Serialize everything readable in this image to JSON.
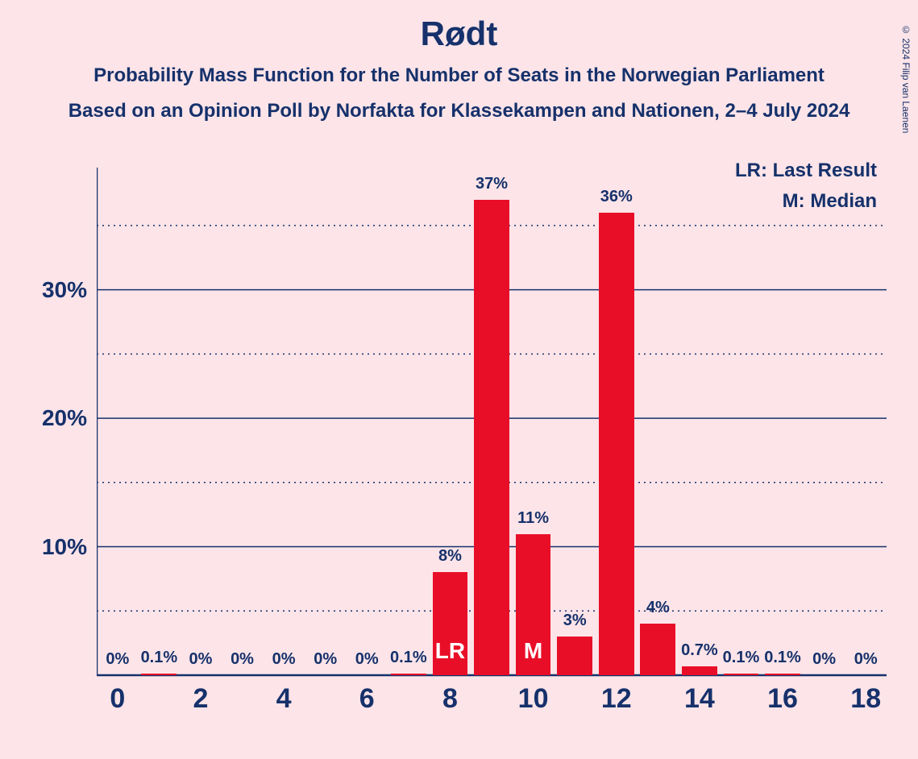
{
  "title": "Rødt",
  "subtitle1": "Probability Mass Function for the Number of Seats in the Norwegian Parliament",
  "subtitle2": "Based on an Opinion Poll by Norfakta for Klassekampen and Nationen, 2–4 July 2024",
  "copyright": "© 2024 Filip van Laenen",
  "legend": {
    "lr": "LR: Last Result",
    "m": "M: Median"
  },
  "chart": {
    "type": "bar",
    "background_color": "#fce4e8",
    "bar_color": "#e90e27",
    "axis_color": "#16316b",
    "text_color": "#16316b",
    "marker_text_color": "#ffffff",
    "title_fontsize": 42,
    "subtitle_fontsize": 24,
    "ylabel_fontsize": 28,
    "xlabel_fontsize": 34,
    "barlabel_fontsize": 20,
    "legend_fontsize": 24,
    "ylim": [
      0,
      37
    ],
    "y_major_ticks": [
      10,
      20,
      30
    ],
    "y_minor_ticks": [
      5,
      15,
      25,
      35
    ],
    "x_categories": [
      0,
      1,
      2,
      3,
      4,
      5,
      6,
      7,
      8,
      9,
      10,
      11,
      12,
      13,
      14,
      15,
      16,
      17,
      18
    ],
    "x_labels_shown": [
      0,
      2,
      4,
      6,
      8,
      10,
      12,
      14,
      16,
      18
    ],
    "bar_width": 0.85,
    "bars": [
      {
        "x": 0,
        "value": 0,
        "label": "0%"
      },
      {
        "x": 1,
        "value": 0.1,
        "label": "0.1%"
      },
      {
        "x": 2,
        "value": 0,
        "label": "0%"
      },
      {
        "x": 3,
        "value": 0,
        "label": "0%"
      },
      {
        "x": 4,
        "value": 0,
        "label": "0%"
      },
      {
        "x": 5,
        "value": 0,
        "label": "0%"
      },
      {
        "x": 6,
        "value": 0,
        "label": "0%"
      },
      {
        "x": 7,
        "value": 0.1,
        "label": "0.1%"
      },
      {
        "x": 8,
        "value": 8,
        "label": "8%",
        "marker": "LR"
      },
      {
        "x": 9,
        "value": 37,
        "label": "37%"
      },
      {
        "x": 10,
        "value": 11,
        "label": "11%",
        "marker": "M"
      },
      {
        "x": 11,
        "value": 3,
        "label": "3%"
      },
      {
        "x": 12,
        "value": 36,
        "label": "36%"
      },
      {
        "x": 13,
        "value": 4,
        "label": "4%"
      },
      {
        "x": 14,
        "value": 0.7,
        "label": "0.7%"
      },
      {
        "x": 15,
        "value": 0.1,
        "label": "0.1%"
      },
      {
        "x": 16,
        "value": 0.1,
        "label": "0.1%"
      },
      {
        "x": 17,
        "value": 0,
        "label": "0%"
      },
      {
        "x": 18,
        "value": 0,
        "label": "0%"
      }
    ]
  }
}
